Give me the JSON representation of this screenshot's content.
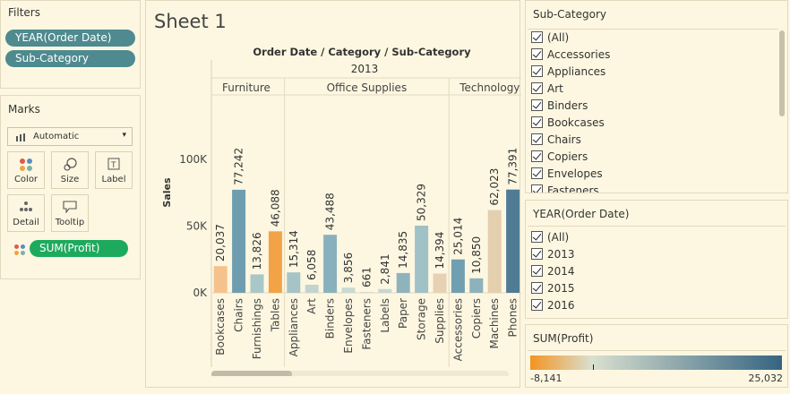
{
  "filters": {
    "title": "Filters",
    "pills": [
      "YEAR(Order Date)",
      "Sub-Category"
    ]
  },
  "marks": {
    "title": "Marks",
    "mark_type": "Automatic",
    "cards": [
      "Color",
      "Size",
      "Label",
      "Detail",
      "Tooltip"
    ],
    "field_pill": "SUM(Profit)"
  },
  "sheet": {
    "title": "Sheet 1"
  },
  "chart_data": {
    "type": "bar",
    "title": "Order Date / Category / Sub-Category",
    "year": "2013",
    "ylabel": "Sales",
    "ylim": [
      0,
      110000
    ],
    "yticks": [
      {
        "label": "0K",
        "value": 0
      },
      {
        "label": "50K",
        "value": 50000
      },
      {
        "label": "100K",
        "value": 100000
      }
    ],
    "color_scale": {
      "min": -8141,
      "max": 25032,
      "low_color": "#f39422",
      "mid_color": "#d9e0cf",
      "high_color": "#356481"
    },
    "categories": [
      {
        "name": "Furniture",
        "bars": [
          {
            "sub": "Bookcases",
            "value": 20037,
            "label": "20,037",
            "color": "#f5c28e"
          },
          {
            "sub": "Chairs",
            "value": 77242,
            "label": "77,242",
            "color": "#6f9db0"
          },
          {
            "sub": "Furnishings",
            "value": 13826,
            "label": "13,826",
            "color": "#a9c7c8"
          },
          {
            "sub": "Tables",
            "value": 46088,
            "label": "46,088",
            "color": "#f3a346"
          }
        ]
      },
      {
        "name": "Office Supplies",
        "bars": [
          {
            "sub": "Appliances",
            "value": 15314,
            "label": "15,314",
            "color": "#a6c4c5"
          },
          {
            "sub": "Art",
            "value": 6058,
            "label": "6,058",
            "color": "#c3d4cf"
          },
          {
            "sub": "Binders",
            "value": 43488,
            "label": "43,488",
            "color": "#89b1bd"
          },
          {
            "sub": "Envelopes",
            "value": 3856,
            "label": "3,856",
            "color": "#cad9d2"
          },
          {
            "sub": "Fasteners",
            "value": 661,
            "label": "661",
            "color": "#d5dccf"
          },
          {
            "sub": "Labels",
            "value": 2841,
            "label": "2,841",
            "color": "#c7d7d1"
          },
          {
            "sub": "Paper",
            "value": 14835,
            "label": "14,835",
            "color": "#8fb3bd"
          },
          {
            "sub": "Storage",
            "value": 50329,
            "label": "50,329",
            "color": "#a0c1c5"
          },
          {
            "sub": "Supplies",
            "value": 14394,
            "label": "14,394",
            "color": "#e8d1b2"
          }
        ]
      },
      {
        "name": "Technology",
        "bars": [
          {
            "sub": "Accessories",
            "value": 25014,
            "label": "25,014",
            "color": "#709fb1"
          },
          {
            "sub": "Copiers",
            "value": 10850,
            "label": "10,850",
            "color": "#8db2bb"
          },
          {
            "sub": "Machines",
            "value": 62023,
            "label": "62,023",
            "color": "#e4cfae"
          },
          {
            "sub": "Phones",
            "value": 77391,
            "label": "77,391",
            "color": "#4f7b95"
          }
        ]
      }
    ]
  },
  "subcategory_filter": {
    "title": "Sub-Category",
    "items": [
      "(All)",
      "Accessories",
      "Appliances",
      "Art",
      "Binders",
      "Bookcases",
      "Chairs",
      "Copiers",
      "Envelopes",
      "Fasteners"
    ]
  },
  "year_filter": {
    "title": "YEAR(Order Date)",
    "items": [
      "(All)",
      "2013",
      "2014",
      "2015",
      "2016"
    ]
  },
  "legend": {
    "title": "SUM(Profit)",
    "min_label": "-8,141",
    "max_label": "25,032"
  }
}
